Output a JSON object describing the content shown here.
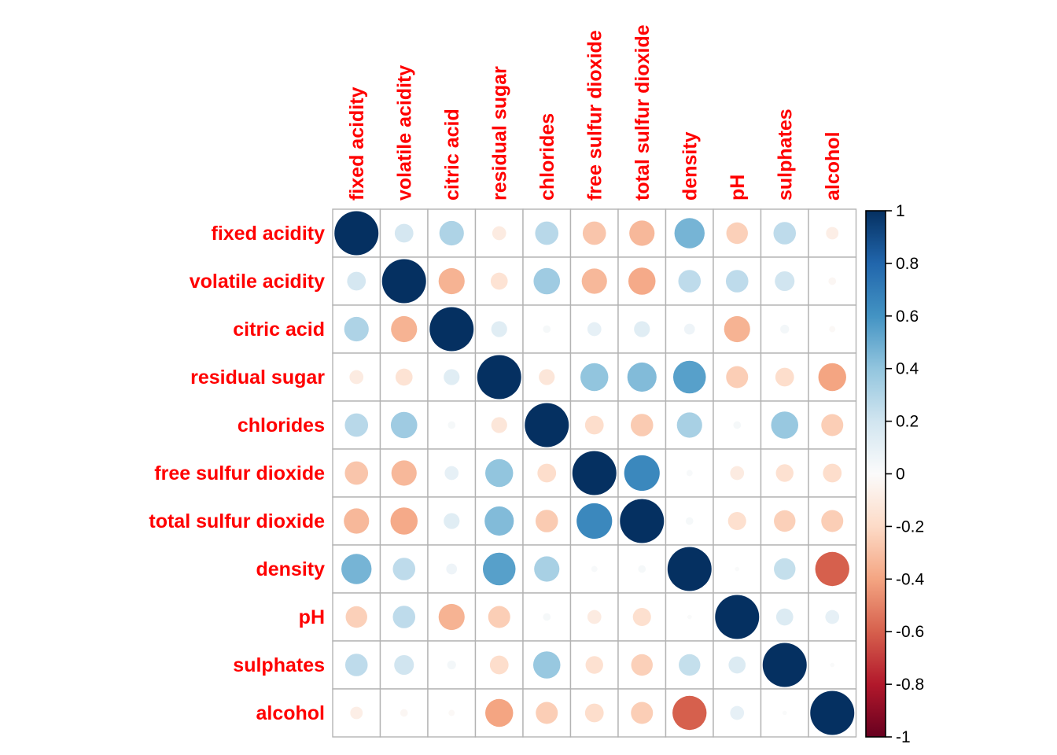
{
  "figure": {
    "kind": "correlation matrix plot (circle style) with vertical colorbar",
    "background": "#FFFFFF"
  },
  "chart_data": {
    "type": "heatmap",
    "variant": "correlation-circle-matrix",
    "title": "",
    "xlabel": "",
    "ylabel": "",
    "grid": true,
    "legend_position": "right-colorbar",
    "value_range": [
      -1,
      1
    ],
    "variables": [
      "fixed acidity",
      "volatile acidity",
      "citric acid",
      "residual sugar",
      "chlorides",
      "free sulfur dioxide",
      "total sulfur dioxide",
      "density",
      "pH",
      "sulphates",
      "alcohol"
    ],
    "matrix": [
      [
        1.0,
        0.18,
        0.31,
        -0.1,
        0.28,
        -0.28,
        -0.33,
        0.47,
        -0.24,
        0.26,
        -0.08
      ],
      [
        0.18,
        1.0,
        -0.35,
        -0.15,
        0.36,
        -0.33,
        -0.38,
        0.26,
        0.26,
        0.2,
        -0.03
      ],
      [
        0.31,
        -0.35,
        1.0,
        0.13,
        0.03,
        0.1,
        0.13,
        0.06,
        -0.35,
        0.04,
        -0.02
      ],
      [
        -0.1,
        -0.15,
        0.13,
        1.0,
        -0.13,
        0.4,
        0.44,
        0.55,
        -0.25,
        -0.18,
        -0.4
      ],
      [
        0.28,
        0.36,
        0.03,
        -0.13,
        1.0,
        -0.18,
        -0.26,
        0.33,
        0.03,
        0.38,
        -0.25
      ],
      [
        -0.28,
        -0.33,
        0.1,
        0.4,
        -0.18,
        1.0,
        0.65,
        0.02,
        -0.1,
        -0.16,
        -0.18
      ],
      [
        -0.33,
        -0.38,
        0.13,
        0.44,
        -0.26,
        0.65,
        1.0,
        0.03,
        -0.17,
        -0.24,
        -0.25
      ],
      [
        0.47,
        0.26,
        0.06,
        0.55,
        0.33,
        0.02,
        0.03,
        1.0,
        0.01,
        0.24,
        -0.6
      ],
      [
        -0.24,
        0.26,
        -0.35,
        -0.25,
        0.03,
        -0.1,
        -0.17,
        0.01,
        1.0,
        0.15,
        0.1
      ],
      [
        0.26,
        0.2,
        0.04,
        -0.18,
        0.38,
        -0.16,
        -0.24,
        0.24,
        0.15,
        1.0,
        0.01
      ],
      [
        -0.08,
        -0.03,
        -0.02,
        -0.4,
        -0.25,
        -0.18,
        -0.25,
        -0.6,
        0.1,
        0.01,
        1.0
      ]
    ],
    "colorbar": {
      "ticks": [
        "1",
        "0.8",
        "0.6",
        "0.4",
        "0.2",
        "0",
        "-0.2",
        "-0.4",
        "-0.6",
        "-0.8",
        "-1"
      ],
      "tick_values": [
        1,
        0.8,
        0.6,
        0.4,
        0.2,
        0,
        -0.2,
        -0.4,
        -0.6,
        -0.8,
        -1
      ],
      "max": 1,
      "min": -1
    },
    "palette_stops": [
      [
        -1.0,
        "#67001F"
      ],
      [
        -0.8,
        "#B2182B"
      ],
      [
        -0.6,
        "#D6604D"
      ],
      [
        -0.4,
        "#F4A582"
      ],
      [
        -0.2,
        "#FDDBC7"
      ],
      [
        0.0,
        "#FBFBFB"
      ],
      [
        0.2,
        "#D1E5F0"
      ],
      [
        0.4,
        "#92C5DE"
      ],
      [
        0.6,
        "#4393C3"
      ],
      [
        0.8,
        "#2166AC"
      ],
      [
        1.0,
        "#053061"
      ]
    ],
    "styles": {
      "variable_label_color": "#FF0000",
      "tick_label_color": "#000000",
      "grid_color": "#B3B3B3",
      "colorbar_border_color": "#000000"
    }
  }
}
